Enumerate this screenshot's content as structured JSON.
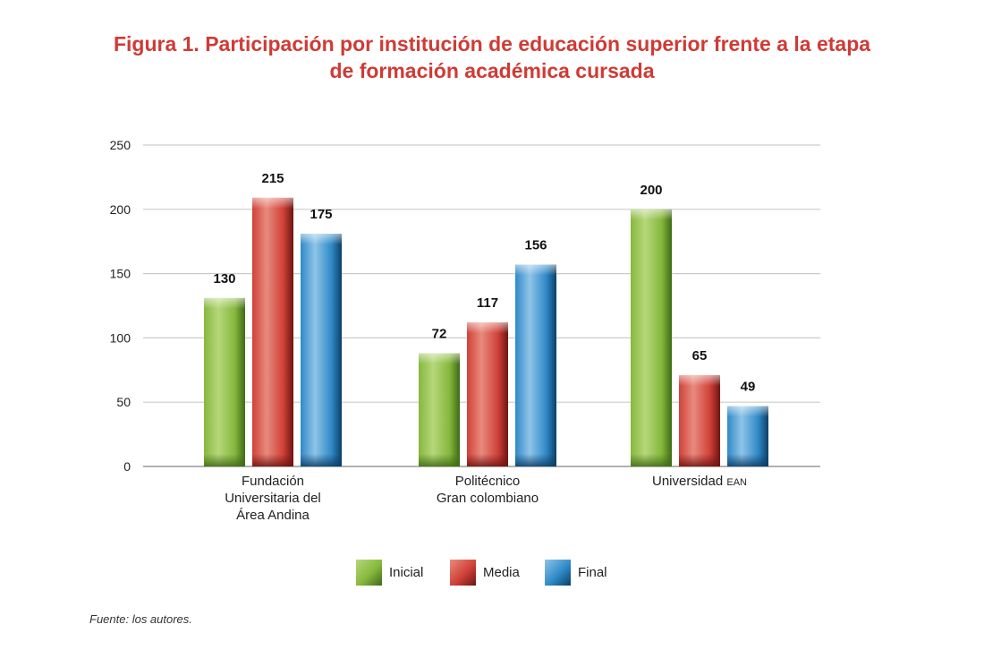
{
  "title": {
    "line1": "Figura 1. Participación por institución de educación superior frente a la etapa",
    "line2": "de formación académica cursada"
  },
  "source": "Fuente: los autores.",
  "categories_display": [
    {
      "lines": [
        "Fundación",
        "Universitaria del",
        "Área Andina"
      ]
    },
    {
      "lines": [
        "Politécnico",
        "Gran colombiano"
      ]
    },
    {
      "name": "Universidad",
      "suffix": "EAN"
    }
  ],
  "colors": {
    "Inicial": {
      "light": "#b6d77a",
      "mid": "#86b83d",
      "dark": "#3f6a16"
    },
    "Media": {
      "light": "#e88a7e",
      "mid": "#d04138",
      "dark": "#6e1512"
    },
    "Final": {
      "light": "#8fc4e8",
      "mid": "#2f8ac8",
      "dark": "#0d3f66"
    },
    "title": "#cf3b35",
    "grid": "#cccccc"
  },
  "chart_data": {
    "type": "bar",
    "title": "Figura 1. Participación por institución de educación superior frente a la etapa de formación académica cursada",
    "categories": [
      "Fundación Universitaria del Área Andina",
      "Politécnico Gran colombiano",
      "Universidad EAN"
    ],
    "series": [
      {
        "name": "Inicial",
        "values": [
          130,
          72,
          200
        ]
      },
      {
        "name": "Media",
        "values": [
          215,
          117,
          65
        ]
      },
      {
        "name": "Final",
        "values": [
          175,
          156,
          49
        ]
      }
    ],
    "bar_heights_approx": {
      "Inicial": [
        131,
        88,
        200
      ],
      "Media": [
        209,
        112,
        71
      ],
      "Final": [
        181,
        157,
        47
      ]
    },
    "yticks": [
      0,
      50,
      100,
      150,
      200,
      250
    ],
    "ylim": [
      0,
      250
    ],
    "grid": true,
    "legend": "bottom-center"
  }
}
